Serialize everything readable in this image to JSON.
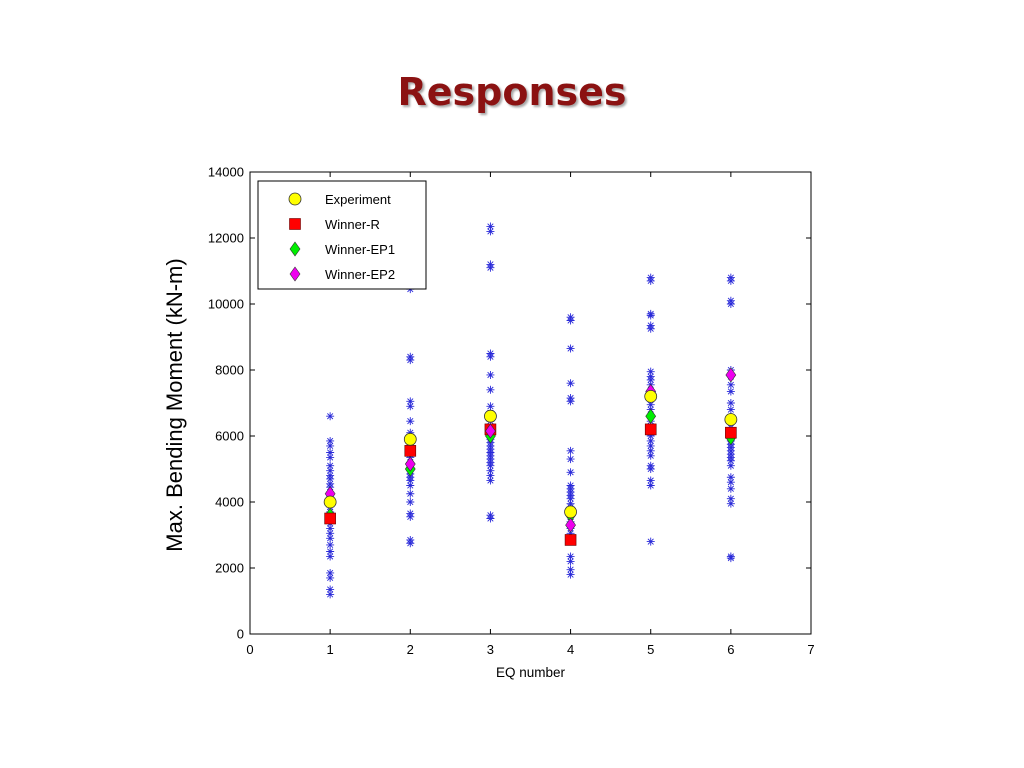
{
  "slide": {
    "title": "Responses"
  },
  "chart_data": {
    "type": "scatter",
    "xlabel": "EQ number",
    "ylabel": "Max. Bending Moment (kN-m)",
    "xlim": [
      0,
      7
    ],
    "ylim": [
      0,
      14000
    ],
    "xticks": [
      0,
      1,
      2,
      3,
      4,
      5,
      6,
      7
    ],
    "yticks": [
      0,
      2000,
      4000,
      6000,
      8000,
      10000,
      12000,
      14000
    ],
    "grid": false,
    "legend_position": "top-left",
    "series": [
      {
        "name": "Experiment",
        "marker": "circle",
        "color": "#FFFF00",
        "points": [
          [
            1,
            4000
          ],
          [
            2,
            5900
          ],
          [
            3,
            6600
          ],
          [
            4,
            3700
          ],
          [
            5,
            7200
          ],
          [
            6,
            6500
          ]
        ]
      },
      {
        "name": "Winner-R",
        "marker": "square",
        "color": "#FF0000",
        "points": [
          [
            1,
            3500
          ],
          [
            2,
            5550
          ],
          [
            3,
            6200
          ],
          [
            4,
            2850
          ],
          [
            5,
            6200
          ],
          [
            6,
            6100
          ]
        ]
      },
      {
        "name": "Winner-EP1",
        "marker": "diamond",
        "color": "#00EE00",
        "points": [
          [
            1,
            3600
          ],
          [
            2,
            5000
          ],
          [
            3,
            6000
          ],
          [
            4,
            3600
          ],
          [
            5,
            6600
          ],
          [
            6,
            5950
          ]
        ]
      },
      {
        "name": "Winner-EP2",
        "marker": "diamond",
        "color": "#EE00EE",
        "points": [
          [
            1,
            4250
          ],
          [
            2,
            5150
          ],
          [
            3,
            6150
          ],
          [
            4,
            3300
          ],
          [
            5,
            7350
          ],
          [
            6,
            7850
          ]
        ]
      }
    ],
    "ensemble": {
      "marker": "star",
      "color": "#2B2BD9",
      "points": [
        [
          1,
          1200
        ],
        [
          1,
          1350
        ],
        [
          1,
          1700
        ],
        [
          1,
          1850
        ],
        [
          1,
          2350
        ],
        [
          1,
          2500
        ],
        [
          1,
          2700
        ],
        [
          1,
          2900
        ],
        [
          1,
          3050
        ],
        [
          1,
          3200
        ],
        [
          1,
          3350
        ],
        [
          1,
          3500
        ],
        [
          1,
          3700
        ],
        [
          1,
          3850
        ],
        [
          1,
          3950
        ],
        [
          1,
          4150
        ],
        [
          1,
          4300
        ],
        [
          1,
          4450
        ],
        [
          1,
          4550
        ],
        [
          1,
          4700
        ],
        [
          1,
          4800
        ],
        [
          1,
          4950
        ],
        [
          1,
          5100
        ],
        [
          1,
          5350
        ],
        [
          1,
          5500
        ],
        [
          1,
          5700
        ],
        [
          1,
          5850
        ],
        [
          1,
          6600
        ],
        [
          2,
          2750
        ],
        [
          2,
          2850
        ],
        [
          2,
          3550
        ],
        [
          2,
          3650
        ],
        [
          2,
          4000
        ],
        [
          2,
          4250
        ],
        [
          2,
          4500
        ],
        [
          2,
          4650
        ],
        [
          2,
          4750
        ],
        [
          2,
          4850
        ],
        [
          2,
          4950
        ],
        [
          2,
          5050
        ],
        [
          2,
          5200
        ],
        [
          2,
          5350
        ],
        [
          2,
          5450
        ],
        [
          2,
          5650
        ],
        [
          2,
          5800
        ],
        [
          2,
          6100
        ],
        [
          2,
          6450
        ],
        [
          2,
          6900
        ],
        [
          2,
          7050
        ],
        [
          2,
          8300
        ],
        [
          2,
          8400
        ],
        [
          2,
          10450
        ],
        [
          3,
          3500
        ],
        [
          3,
          3600
        ],
        [
          3,
          4650
        ],
        [
          3,
          4800
        ],
        [
          3,
          4950
        ],
        [
          3,
          5100
        ],
        [
          3,
          5200
        ],
        [
          3,
          5300
        ],
        [
          3,
          5400
        ],
        [
          3,
          5500
        ],
        [
          3,
          5600
        ],
        [
          3,
          5700
        ],
        [
          3,
          5800
        ],
        [
          3,
          5900
        ],
        [
          3,
          6050
        ],
        [
          3,
          6200
        ],
        [
          3,
          6450
        ],
        [
          3,
          6700
        ],
        [
          3,
          6900
        ],
        [
          3,
          7400
        ],
        [
          3,
          7850
        ],
        [
          3,
          8400
        ],
        [
          3,
          8500
        ],
        [
          3,
          11100
        ],
        [
          3,
          11200
        ],
        [
          3,
          12200
        ],
        [
          3,
          12350
        ],
        [
          4,
          1800
        ],
        [
          4,
          1950
        ],
        [
          4,
          2200
        ],
        [
          4,
          2350
        ],
        [
          4,
          2900
        ],
        [
          4,
          3050
        ],
        [
          4,
          3200
        ],
        [
          4,
          3400
        ],
        [
          4,
          3550
        ],
        [
          4,
          3700
        ],
        [
          4,
          3850
        ],
        [
          4,
          3950
        ],
        [
          4,
          4100
        ],
        [
          4,
          4200
        ],
        [
          4,
          4300
        ],
        [
          4,
          4400
        ],
        [
          4,
          4500
        ],
        [
          4,
          4900
        ],
        [
          4,
          5300
        ],
        [
          4,
          5550
        ],
        [
          4,
          7050
        ],
        [
          4,
          7150
        ],
        [
          4,
          7600
        ],
        [
          4,
          8650
        ],
        [
          4,
          9500
        ],
        [
          4,
          9600
        ],
        [
          5,
          2800
        ],
        [
          5,
          4500
        ],
        [
          5,
          4650
        ],
        [
          5,
          5000
        ],
        [
          5,
          5100
        ],
        [
          5,
          5400
        ],
        [
          5,
          5550
        ],
        [
          5,
          5700
        ],
        [
          5,
          5850
        ],
        [
          5,
          6000
        ],
        [
          5,
          6100
        ],
        [
          5,
          6300
        ],
        [
          5,
          6450
        ],
        [
          5,
          6800
        ],
        [
          5,
          6950
        ],
        [
          5,
          7150
        ],
        [
          5,
          7300
        ],
        [
          5,
          7550
        ],
        [
          5,
          7700
        ],
        [
          5,
          7800
        ],
        [
          5,
          7950
        ],
        [
          5,
          9250
        ],
        [
          5,
          9350
        ],
        [
          5,
          9650
        ],
        [
          5,
          9700
        ],
        [
          5,
          10700
        ],
        [
          5,
          10800
        ],
        [
          6,
          2300
        ],
        [
          6,
          2350
        ],
        [
          6,
          3950
        ],
        [
          6,
          4100
        ],
        [
          6,
          4400
        ],
        [
          6,
          4600
        ],
        [
          6,
          4750
        ],
        [
          6,
          5100
        ],
        [
          6,
          5250
        ],
        [
          6,
          5350
        ],
        [
          6,
          5450
        ],
        [
          6,
          5550
        ],
        [
          6,
          5650
        ],
        [
          6,
          5750
        ],
        [
          6,
          5850
        ],
        [
          6,
          6000
        ],
        [
          6,
          6250
        ],
        [
          6,
          6550
        ],
        [
          6,
          6800
        ],
        [
          6,
          7000
        ],
        [
          6,
          7350
        ],
        [
          6,
          7550
        ],
        [
          6,
          7800
        ],
        [
          6,
          8000
        ],
        [
          6,
          10000
        ],
        [
          6,
          10100
        ],
        [
          6,
          10700
        ],
        [
          6,
          10800
        ]
      ]
    }
  }
}
